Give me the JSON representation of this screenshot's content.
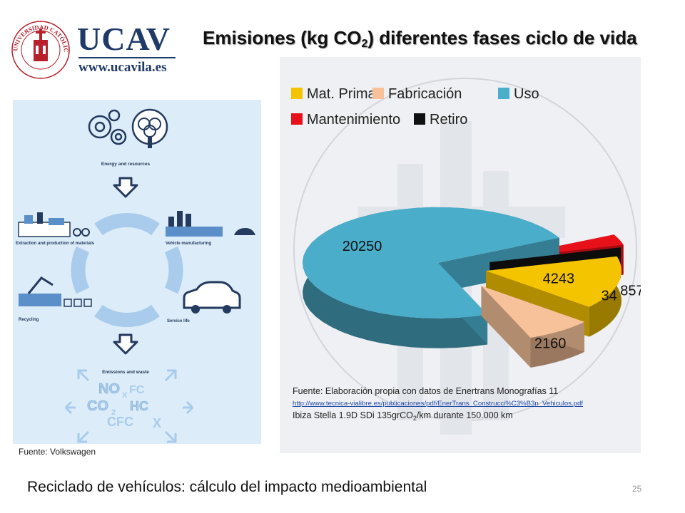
{
  "logo": {
    "name": "UCAV",
    "url": "www.ucavila.es",
    "seal_text": "UNIVERSIDAD CATÓLICA DE ÁVILA"
  },
  "title": {
    "prefix": "Emisiones (kg CO",
    "subscript": "2",
    "suffix": ") diferentes fases ciclo de vida"
  },
  "chart_data": {
    "type": "pie",
    "title": "",
    "categories": [
      "Mat. Primas",
      "Fabricación",
      "Uso",
      "Mantenimiento",
      "Retiro"
    ],
    "values": [
      4243,
      2160,
      20250,
      857,
      34
    ],
    "data_labels": [
      "4243",
      "2160",
      "20250",
      "857",
      "34"
    ],
    "colors": [
      "#f5c400",
      "#f7c29a",
      "#4aaecb",
      "#e8111a",
      "#111111"
    ],
    "legend_position": "top",
    "three_d": true,
    "exploded": true
  },
  "lifecycle": {
    "stages": [
      "Energy and resources",
      "Extraction and production of materials",
      "Vehicle manufacturing",
      "Recycling",
      "Service life",
      "Emissions and waste"
    ],
    "emission_symbols": [
      "NO",
      "X",
      "FC",
      "CO",
      "2",
      "HC",
      "CFC",
      "X"
    ],
    "colors": {
      "navy": "#243a5e",
      "blue": "#5b8fc9",
      "light": "#a9ccec"
    }
  },
  "captions": {
    "left_source": "Fuente: Volkswagen",
    "source_line1": "Fuente: Elaboración propia con datos de Enertrans  Monografías 11",
    "source_link": "http://www.tecnica-vialibre.es/publicaciones/pdf/EnerTrans_Construcci%C3%B3n_Vehiculos.pdf",
    "source_line3_a": "Ibiza Stella 1.9D SDi  135grCO",
    "source_line3_sub": "2",
    "source_line3_b": "/km durante 150.000 km"
  },
  "footer": {
    "title": "Reciclado de vehículos: cálculo del impacto medioambiental",
    "page": "25"
  }
}
